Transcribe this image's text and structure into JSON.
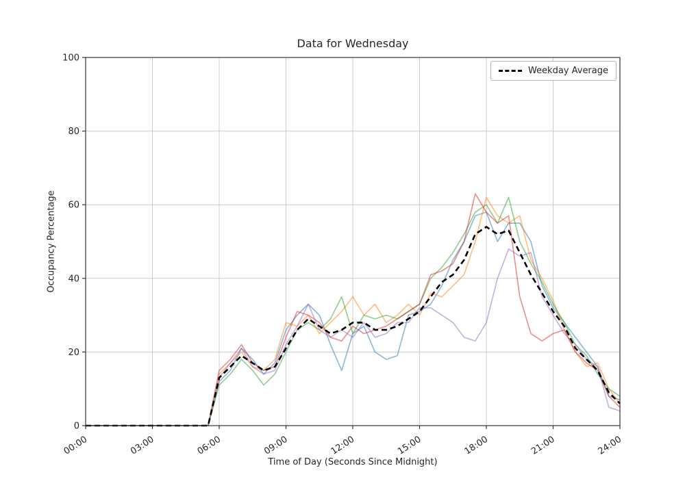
{
  "chart_data": {
    "type": "line",
    "title": "Data for Wednesday",
    "xlabel": "Time of Day (Seconds Since Midnight)",
    "ylabel": "Occupancy Percentage",
    "xlim": [
      0,
      24
    ],
    "ylim": [
      0,
      100
    ],
    "grid": true,
    "legend_position": "upper right",
    "x_ticks": [
      {
        "hour": 0,
        "label": "00:00"
      },
      {
        "hour": 3,
        "label": "03:00"
      },
      {
        "hour": 6,
        "label": "06:00"
      },
      {
        "hour": 9,
        "label": "09:00"
      },
      {
        "hour": 12,
        "label": "12:00"
      },
      {
        "hour": 15,
        "label": "15:00"
      },
      {
        "hour": 18,
        "label": "18:00"
      },
      {
        "hour": 21,
        "label": "21:00"
      },
      {
        "hour": 24,
        "label": "24:00"
      }
    ],
    "y_ticks": [
      0,
      20,
      40,
      60,
      80,
      100
    ],
    "x": [
      0,
      0.5,
      1,
      1.5,
      2,
      2.5,
      3,
      3.5,
      4,
      4.5,
      5,
      5.5,
      6,
      6.5,
      7,
      7.5,
      8,
      8.5,
      9,
      9.5,
      10,
      10.5,
      11,
      11.5,
      12,
      12.5,
      13,
      13.5,
      14,
      14.5,
      15,
      15.5,
      16,
      16.5,
      17,
      17.5,
      18,
      18.5,
      19,
      19.5,
      20,
      20.5,
      21,
      21.5,
      22,
      22.5,
      23,
      23.5,
      24
    ],
    "series": [
      {
        "name": "series-1",
        "color": "#1f77b4",
        "opacity": 0.5,
        "values": [
          0,
          0,
          0,
          0,
          0,
          0,
          0,
          0,
          0,
          0,
          0,
          0,
          12,
          15,
          21,
          18,
          14,
          17,
          26,
          30,
          33,
          30,
          22,
          15,
          25,
          27,
          20,
          18,
          19,
          30,
          31,
          33,
          38,
          45,
          50,
          57,
          58,
          50,
          55,
          55,
          50,
          38,
          32,
          28,
          24,
          20,
          16,
          8,
          7
        ]
      },
      {
        "name": "series-2",
        "color": "#ff7f0e",
        "opacity": 0.5,
        "values": [
          0,
          0,
          0,
          0,
          0,
          0,
          0,
          0,
          0,
          0,
          0,
          0,
          14,
          17,
          20,
          16,
          15,
          18,
          28,
          27,
          30,
          25,
          28,
          31,
          35,
          30,
          33,
          28,
          30,
          33,
          30,
          36,
          35,
          38,
          41,
          50,
          62,
          57,
          55,
          57,
          45,
          40,
          34,
          26,
          20,
          16,
          17,
          10,
          6
        ]
      },
      {
        "name": "series-3",
        "color": "#2ca02c",
        "opacity": 0.5,
        "values": [
          0,
          0,
          0,
          0,
          0,
          0,
          0,
          0,
          0,
          0,
          0,
          0,
          11,
          14,
          18,
          15,
          11,
          14,
          20,
          26,
          28,
          26,
          29,
          35,
          25,
          30,
          29,
          30,
          29,
          31,
          33,
          40,
          43,
          47,
          52,
          58,
          60,
          55,
          62,
          50,
          44,
          39,
          33,
          28,
          22,
          19,
          14,
          10,
          8
        ]
      },
      {
        "name": "series-4",
        "color": "#d62728",
        "opacity": 0.5,
        "values": [
          0,
          0,
          0,
          0,
          0,
          0,
          0,
          0,
          0,
          0,
          0,
          0,
          15,
          18,
          22,
          17,
          15,
          16,
          24,
          31,
          30,
          28,
          24,
          23,
          27,
          25,
          26,
          27,
          29,
          31,
          33,
          41,
          42,
          44,
          50,
          63,
          58,
          55,
          57,
          35,
          25,
          23,
          25,
          26,
          20,
          17,
          15,
          8,
          5
        ]
      },
      {
        "name": "series-5",
        "color": "#9467bd",
        "opacity": 0.5,
        "values": [
          0,
          0,
          0,
          0,
          0,
          0,
          0,
          0,
          0,
          0,
          0,
          0,
          13,
          17,
          21,
          16,
          14,
          15,
          22,
          27,
          33,
          26,
          24,
          26,
          24,
          28,
          24,
          25,
          28,
          28,
          32,
          32,
          30,
          28,
          24,
          23,
          28,
          40,
          48,
          46,
          47,
          35,
          30,
          25,
          22,
          18,
          16,
          5,
          4
        ]
      }
    ],
    "average": {
      "name": "weekday-average",
      "legend_label": "Weekday Average",
      "color": "#000000",
      "dashed": true,
      "values": [
        0,
        0,
        0,
        0,
        0,
        0,
        0,
        0,
        0,
        0,
        0,
        0,
        13,
        16,
        19,
        17,
        15,
        16,
        21,
        26,
        29,
        27,
        25,
        26,
        28,
        28,
        26,
        26,
        27,
        29,
        31,
        35,
        39,
        41,
        45,
        52,
        54,
        52,
        53,
        47,
        41,
        36,
        31,
        27,
        21,
        18,
        15,
        9,
        6
      ]
    }
  }
}
